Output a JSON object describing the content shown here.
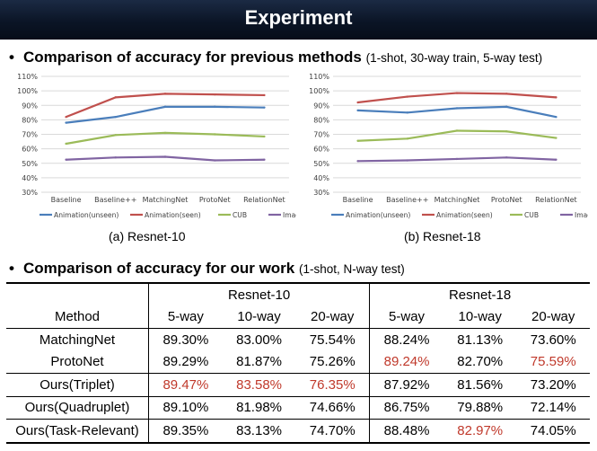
{
  "header": {
    "title": "Experiment"
  },
  "section1": {
    "title": "Comparison of accuracy for previous methods",
    "subtitle": "(1-shot, 30-way train, 5-way test)"
  },
  "section2": {
    "title": "Comparison of accuracy for our work",
    "subtitle": "(1-shot, N-way test)"
  },
  "colors": {
    "Animation(unseen)": "#4a7ebb",
    "Animation(seen)": "#c0504d",
    "CUB": "#9bbb59",
    "ImageNet": "#8064a2",
    "highlight": "#c0392b"
  },
  "chart_data": [
    {
      "type": "line",
      "caption": "(a) Resnet-10",
      "categories": [
        "Baseline",
        "Baseline++",
        "MatchingNet",
        "ProtoNet",
        "RelationNet"
      ],
      "y_ticks": [
        "30%",
        "40%",
        "50%",
        "60%",
        "70%",
        "80%",
        "90%",
        "100%",
        "110%"
      ],
      "ylim": [
        30,
        110
      ],
      "grid": true,
      "legend_position": "bottom",
      "series": [
        {
          "name": "Animation(unseen)",
          "color": "#4a7ebb",
          "values": [
            78,
            82,
            89,
            89,
            88.5
          ]
        },
        {
          "name": "Animation(seen)",
          "color": "#c0504d",
          "values": [
            82,
            95.5,
            98,
            97.5,
            97
          ]
        },
        {
          "name": "CUB",
          "color": "#9bbb59",
          "values": [
            63.5,
            69.5,
            71,
            70,
            68.5
          ]
        },
        {
          "name": "ImageNet",
          "color": "#8064a2",
          "values": [
            52.5,
            54,
            54.5,
            52,
            52.5
          ]
        }
      ]
    },
    {
      "type": "line",
      "caption": "(b) Resnet-18",
      "categories": [
        "Baseline",
        "Baseline++",
        "MatchingNet",
        "ProtoNet",
        "RelationNet"
      ],
      "y_ticks": [
        "30%",
        "40%",
        "50%",
        "60%",
        "70%",
        "80%",
        "90%",
        "100%",
        "110%"
      ],
      "ylim": [
        30,
        110
      ],
      "grid": true,
      "legend_position": "bottom",
      "series": [
        {
          "name": "Animation(unseen)",
          "color": "#4a7ebb",
          "values": [
            86.5,
            85,
            88,
            89,
            82
          ]
        },
        {
          "name": "Animation(seen)",
          "color": "#c0504d",
          "values": [
            92,
            96,
            98.5,
            98,
            95.5
          ]
        },
        {
          "name": "CUB",
          "color": "#9bbb59",
          "values": [
            65.5,
            67,
            72.5,
            72,
            67.5
          ]
        },
        {
          "name": "ImageNet",
          "color": "#8064a2",
          "values": [
            51.5,
            52,
            53,
            54,
            52.5
          ]
        }
      ]
    },
    {
      "type": "table",
      "groups": [
        "Resnet-10",
        "Resnet-18"
      ],
      "method_header": "Method",
      "columns": [
        "5-way",
        "10-way",
        "20-way",
        "5-way",
        "10-way",
        "20-way"
      ],
      "rows": [
        {
          "method": "MatchingNet",
          "values": [
            "89.30%",
            "83.00%",
            "75.54%",
            "88.24%",
            "81.13%",
            "73.60%"
          ],
          "red": [
            false,
            false,
            false,
            false,
            false,
            false
          ]
        },
        {
          "method": "ProtoNet",
          "values": [
            "89.29%",
            "81.87%",
            "75.26%",
            "89.24%",
            "82.70%",
            "75.59%"
          ],
          "red": [
            false,
            false,
            false,
            true,
            false,
            true
          ]
        },
        {
          "method": "Ours(Triplet)",
          "values": [
            "89.47%",
            "83.58%",
            "76.35%",
            "87.92%",
            "81.56%",
            "73.20%"
          ],
          "red": [
            true,
            true,
            true,
            false,
            false,
            false
          ]
        },
        {
          "method": "Ours(Quadruplet)",
          "values": [
            "89.10%",
            "81.98%",
            "74.66%",
            "86.75%",
            "79.88%",
            "72.14%"
          ],
          "red": [
            false,
            false,
            false,
            false,
            false,
            false
          ]
        },
        {
          "method": "Ours(Task-Relevant)",
          "values": [
            "89.35%",
            "83.13%",
            "74.70%",
            "88.48%",
            "82.97%",
            "74.05%"
          ],
          "red": [
            false,
            false,
            false,
            false,
            true,
            false
          ]
        }
      ]
    }
  ]
}
